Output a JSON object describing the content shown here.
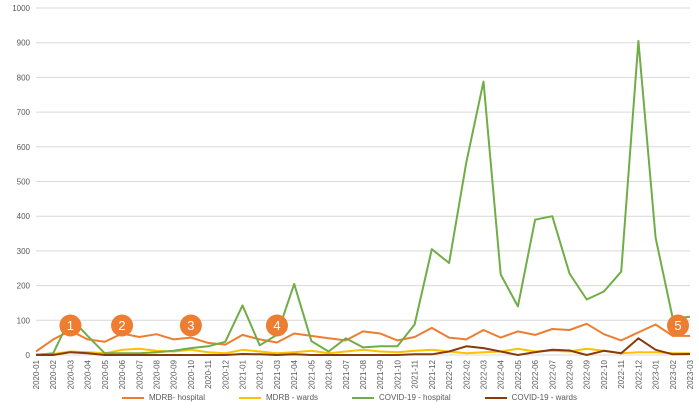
{
  "chart_data": {
    "type": "line",
    "title": "",
    "xlabel": "",
    "ylabel": "",
    "ylim": [
      0,
      1000
    ],
    "y_ticks": [
      0,
      100,
      200,
      300,
      400,
      500,
      600,
      700,
      800,
      900,
      1000
    ],
    "grid": true,
    "legend_position": "bottom",
    "categories": [
      "2020-01",
      "2020-02",
      "2020-03",
      "2020-04",
      "2020-05",
      "2020-06",
      "2020-07",
      "2020-08",
      "2020-09",
      "2020-10",
      "2020-11",
      "2020-12",
      "2021-01",
      "2021-02",
      "2021-03",
      "2021-04",
      "2021-05",
      "2021-06",
      "2021-07",
      "2021-08",
      "2021-09",
      "2021-10",
      "2021-11",
      "2021-12",
      "2022-01",
      "2022-02",
      "2022-03",
      "2022-04",
      "2022-05",
      "2022-06",
      "2022-07",
      "2022-08",
      "2022-09",
      "2022-10",
      "2022-11",
      "2022-12",
      "2023-01",
      "2023-02",
      "2023-03"
    ],
    "series": [
      {
        "name": "MDRB- hospital",
        "color": "#ED7D31",
        "values": [
          10,
          45,
          70,
          45,
          38,
          62,
          52,
          60,
          45,
          50,
          35,
          30,
          58,
          45,
          36,
          62,
          55,
          48,
          42,
          68,
          62,
          42,
          52,
          78,
          50,
          45,
          72,
          50,
          68,
          58,
          75,
          72,
          90,
          60,
          42,
          65,
          88,
          55,
          55
        ]
      },
      {
        "name": "MDRB - wards",
        "color": "#FFC000",
        "values": [
          2,
          3,
          10,
          8,
          5,
          15,
          18,
          12,
          10,
          15,
          8,
          5,
          15,
          10,
          5,
          8,
          12,
          5,
          10,
          15,
          10,
          8,
          12,
          15,
          10,
          5,
          8,
          10,
          18,
          10,
          12,
          10,
          18,
          12,
          5,
          8,
          8,
          5,
          5
        ]
      },
      {
        "name": "COVID-19 - hospital",
        "color": "#70AD47",
        "values": [
          0,
          5,
          108,
          55,
          5,
          5,
          5,
          8,
          12,
          20,
          25,
          38,
          143,
          28,
          58,
          205,
          40,
          10,
          48,
          22,
          25,
          25,
          88,
          305,
          265,
          555,
          788,
          232,
          140,
          390,
          400,
          235,
          160,
          183,
          240,
          905,
          338,
          105,
          110
        ]
      },
      {
        "name": "COVID-19 - wards",
        "color": "#843C0C",
        "values": [
          0,
          0,
          8,
          5,
          0,
          0,
          0,
          0,
          0,
          0,
          0,
          0,
          3,
          2,
          0,
          2,
          0,
          0,
          0,
          0,
          0,
          0,
          2,
          2,
          10,
          25,
          20,
          10,
          0,
          8,
          15,
          13,
          0,
          12,
          5,
          48,
          15,
          2,
          3
        ]
      }
    ],
    "annotations": [
      {
        "label": "1",
        "x": "2020-03",
        "y": 85
      },
      {
        "label": "2",
        "x": "2020-06",
        "y": 85
      },
      {
        "label": "3",
        "x": "2020-10",
        "y": 85
      },
      {
        "label": "4",
        "x": "2021-03",
        "y": 85
      },
      {
        "label": "5",
        "x": "2023-03",
        "y": 85
      }
    ]
  }
}
